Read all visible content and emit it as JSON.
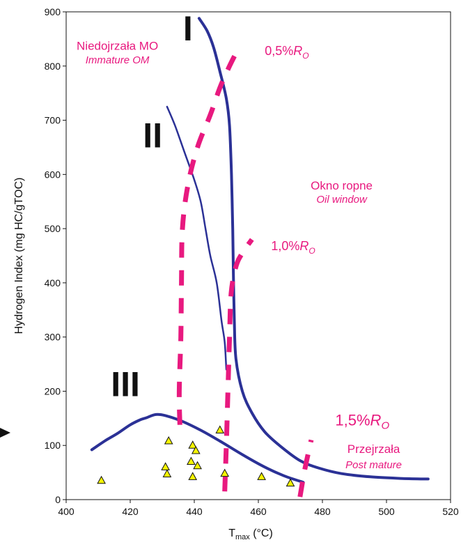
{
  "chart_data": {
    "type": "line",
    "title": "",
    "xlabel_main": "T",
    "xlabel_sub": "max",
    "xlabel_unit": " (°C)",
    "ylabel": "Hydrogen Index (mg HC/gTOC)",
    "xlim": [
      400,
      520
    ],
    "ylim": [
      0,
      900
    ],
    "x_ticks": [
      400,
      420,
      440,
      460,
      480,
      500,
      520
    ],
    "y_ticks": [
      0,
      100,
      200,
      300,
      400,
      500,
      600,
      700,
      800,
      900
    ],
    "grid": false,
    "colors": {
      "kerogen": "#2b3196",
      "ro": "#e8197f",
      "point": "#f5f500"
    },
    "series": [
      {
        "name": "I",
        "points": [
          [
            441.5,
            888
          ],
          [
            444,
            865
          ],
          [
            446,
            835
          ],
          [
            448,
            790
          ],
          [
            450,
            740
          ],
          [
            451,
            690
          ],
          [
            451.6,
            600
          ],
          [
            452,
            500
          ],
          [
            452.2,
            420
          ],
          [
            452.5,
            330
          ],
          [
            453,
            260
          ],
          [
            455,
            200
          ],
          [
            458,
            160
          ],
          [
            462,
            125
          ],
          [
            467,
            98
          ],
          [
            473,
            72
          ],
          [
            479,
            58
          ],
          [
            486,
            48
          ],
          [
            495,
            42
          ],
          [
            505,
            39
          ],
          [
            513,
            38
          ]
        ]
      },
      {
        "name": "II",
        "points": [
          [
            431.5,
            725
          ],
          [
            434,
            690
          ],
          [
            437,
            640
          ],
          [
            440,
            590
          ],
          [
            442,
            550
          ],
          [
            443.5,
            500
          ],
          [
            445,
            450
          ],
          [
            447,
            400
          ],
          [
            448.5,
            330
          ],
          [
            449.5,
            290
          ],
          [
            450,
            240
          ]
        ]
      },
      {
        "name": "III",
        "points": [
          [
            408,
            92
          ],
          [
            412,
            108
          ],
          [
            416,
            122
          ],
          [
            420,
            138
          ],
          [
            423,
            147
          ],
          [
            425,
            151
          ],
          [
            428,
            157
          ],
          [
            431,
            155
          ],
          [
            436,
            145
          ],
          [
            442,
            128
          ],
          [
            448,
            108
          ],
          [
            455,
            83
          ],
          [
            462,
            60
          ],
          [
            468,
            44
          ],
          [
            474,
            32
          ]
        ]
      }
    ],
    "ro_lines": [
      {
        "label": "0,5%R",
        "sub": "O",
        "points": [
          [
            435.5,
            138
          ],
          [
            435.3,
            200
          ],
          [
            435.8,
            300
          ],
          [
            436,
            400
          ],
          [
            436.3,
            500
          ],
          [
            438,
            580
          ],
          [
            441,
            650
          ],
          [
            445,
            710
          ],
          [
            448,
            760
          ],
          [
            451,
            800
          ],
          [
            454,
            835
          ]
        ]
      },
      {
        "label": "1,0%R",
        "sub": "O",
        "points": [
          [
            449.5,
            15
          ],
          [
            450,
            100
          ],
          [
            450.5,
            200
          ],
          [
            451,
            300
          ],
          [
            451.5,
            380
          ],
          [
            453,
            430
          ],
          [
            455,
            455
          ],
          [
            458,
            480
          ]
        ]
      },
      {
        "label": "1,5%R",
        "sub": "O",
        "points": [
          [
            473,
            5
          ],
          [
            474,
            40
          ],
          [
            475,
            70
          ],
          [
            476.5,
            110
          ]
        ]
      }
    ],
    "scatter": {
      "name": "samples",
      "points": [
        [
          411,
          35
        ],
        [
          431,
          60
        ],
        [
          431.5,
          47
        ],
        [
          432,
          108
        ],
        [
          439,
          70
        ],
        [
          439.5,
          42
        ],
        [
          439.5,
          100
        ],
        [
          440.5,
          90
        ],
        [
          441,
          62
        ],
        [
          448,
          128
        ],
        [
          449.5,
          48
        ],
        [
          461,
          42
        ],
        [
          470,
          30
        ]
      ]
    },
    "annotations": [
      {
        "text": "Niedojrzała MO",
        "italic": false,
        "x": 416,
        "y": 830
      },
      {
        "text": "Immature OM",
        "italic": true,
        "x": 416,
        "y": 805
      },
      {
        "text": "Okno ropne",
        "italic": false,
        "x": 486,
        "y": 572
      },
      {
        "text": "Oil window",
        "italic": true,
        "x": 486,
        "y": 548
      },
      {
        "text": "Przejrzała",
        "italic": false,
        "x": 496,
        "y": 86
      },
      {
        "text": "Post mature",
        "italic": true,
        "x": 496,
        "y": 58
      }
    ],
    "roman_labels": [
      {
        "text": "I",
        "x": 438,
        "y": 847
      },
      {
        "text": "II",
        "x": 427,
        "y": 650
      },
      {
        "text": "III",
        "x": 418.5,
        "y": 191
      }
    ],
    "ro_label_pos": [
      {
        "x": 462,
        "y": 820
      },
      {
        "x": 464,
        "y": 460
      },
      {
        "x": 484,
        "y": 137
      }
    ]
  }
}
